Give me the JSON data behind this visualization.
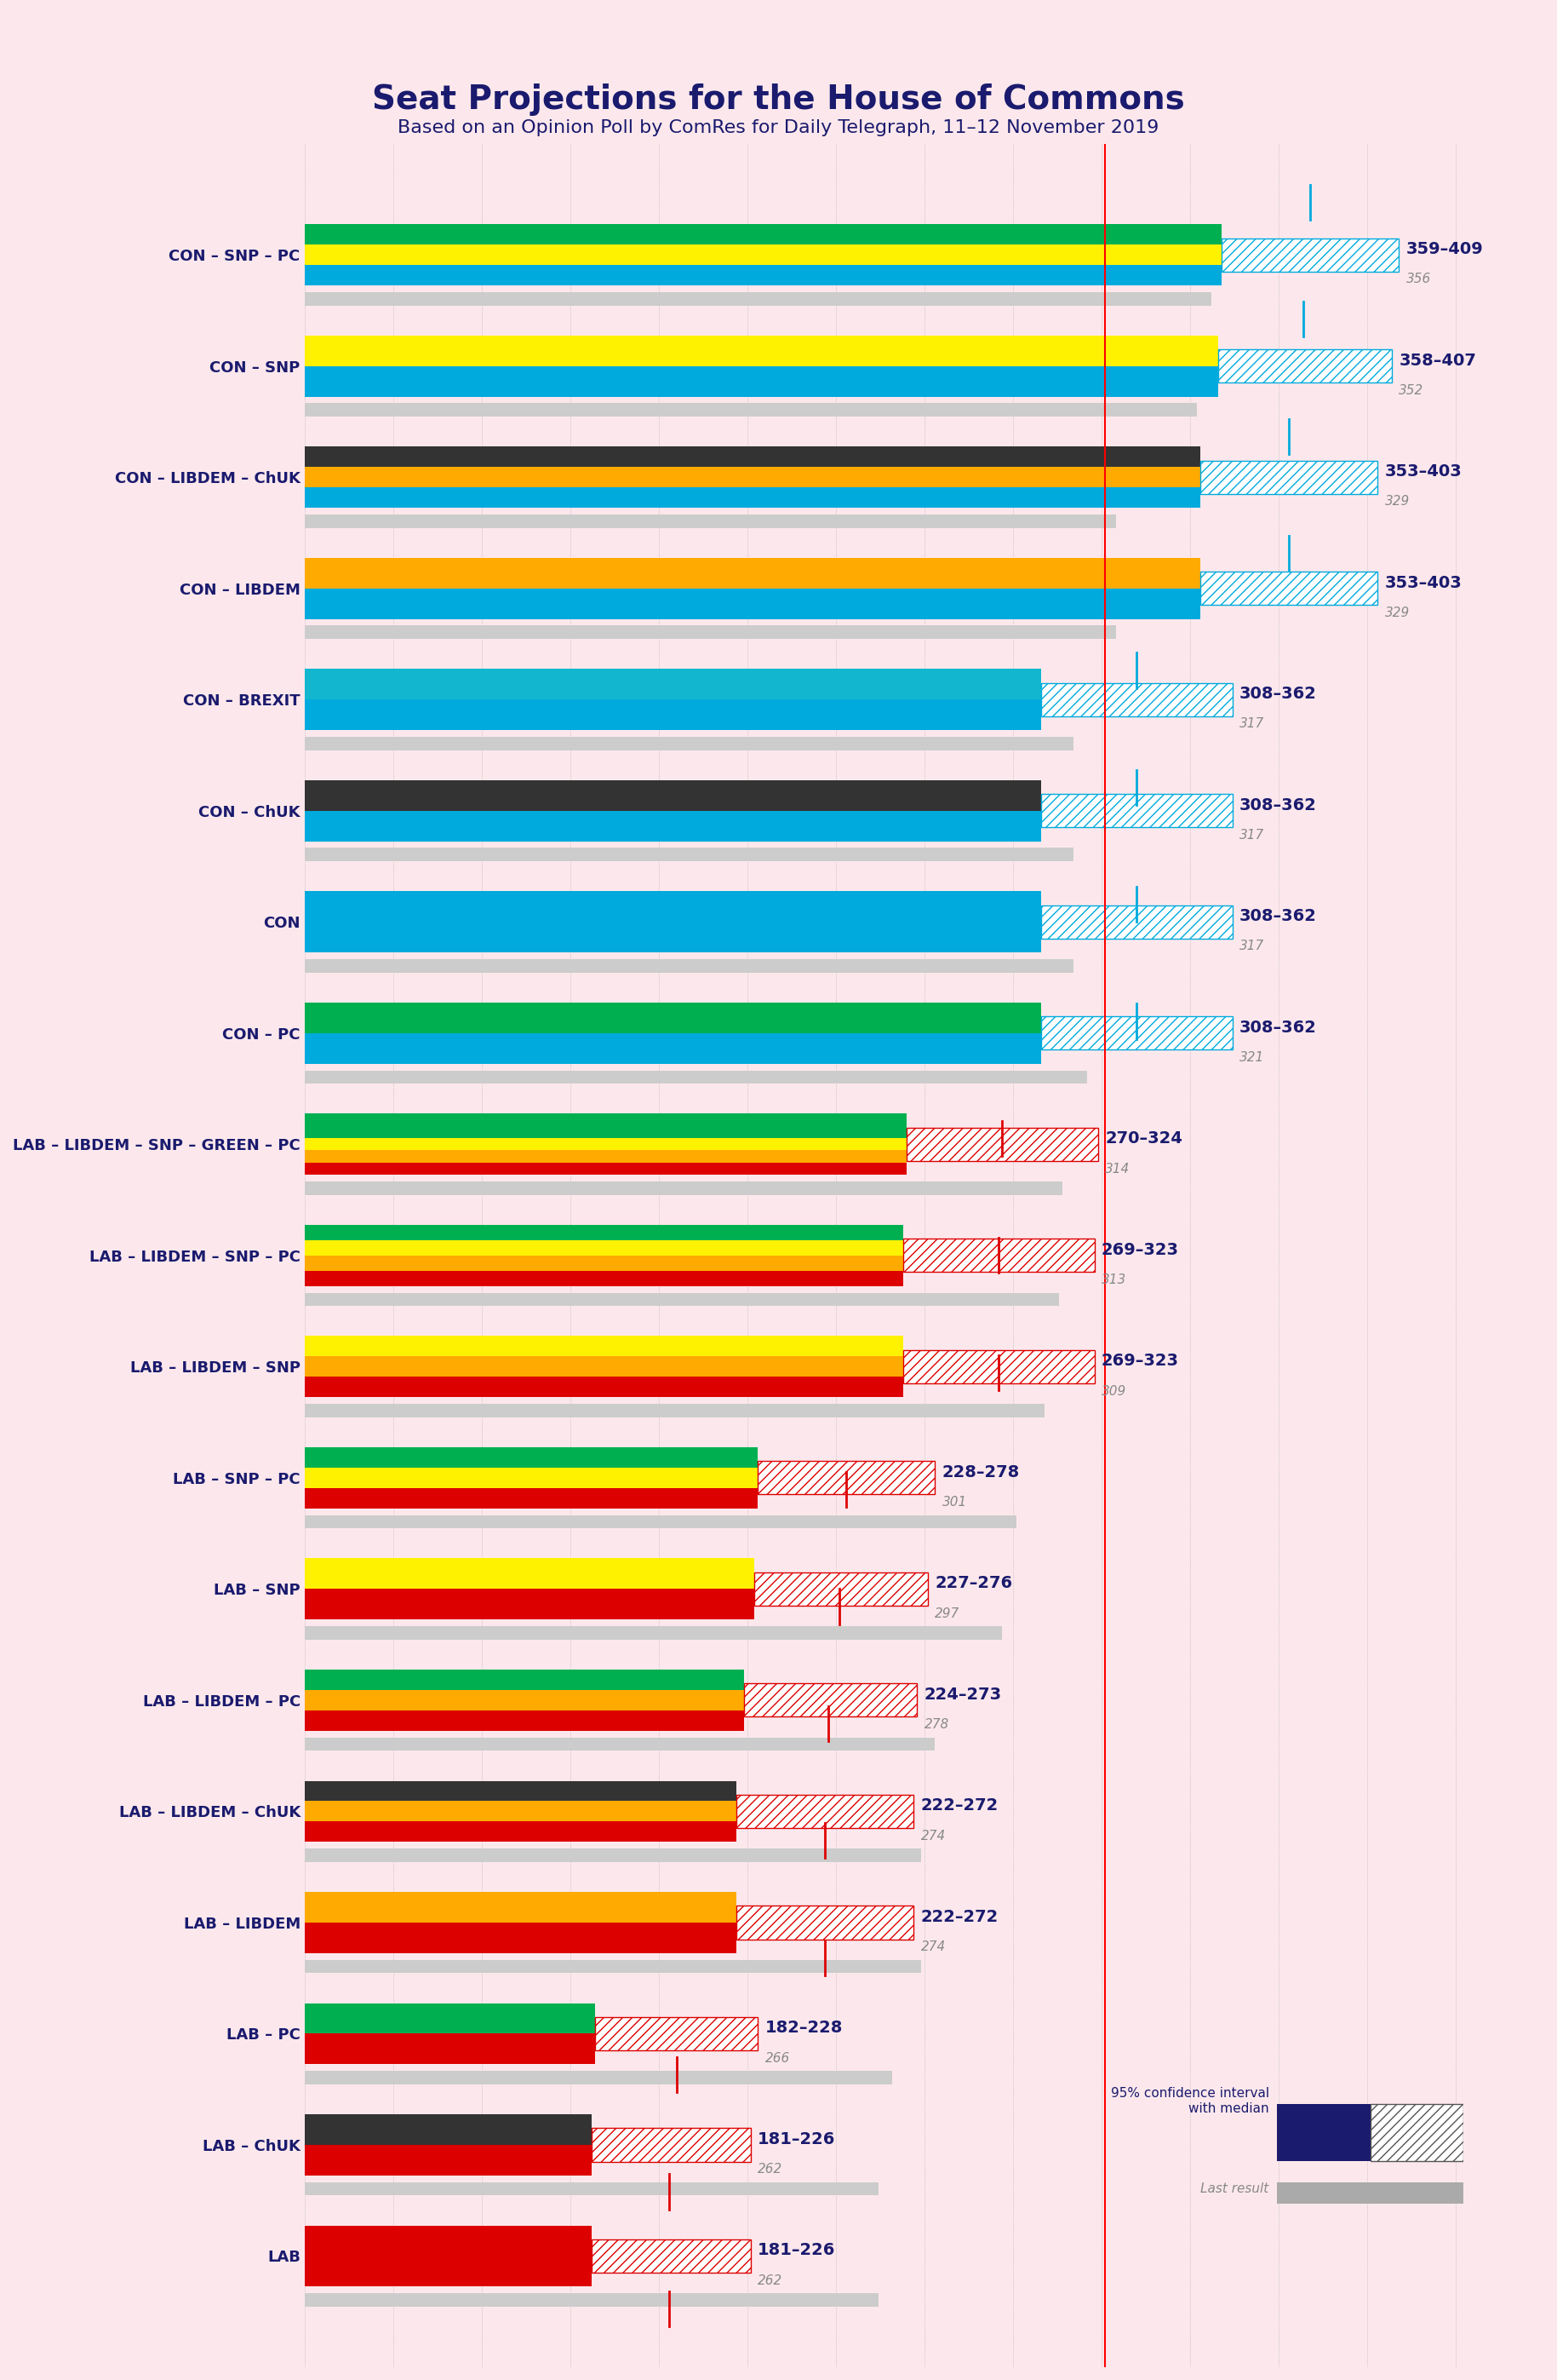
{
  "title": "Seat Projections for the House of Commons",
  "subtitle": "Based on an Opinion Poll by ComRes for Daily Telegraph, 11–12 November 2019",
  "background_color": "#fce8ec",
  "title_color": "#1a1a6e",
  "subtitle_color": "#1a1a6e",
  "majority_line": 326,
  "x_min": 100,
  "x_max": 450,
  "legend_label_ci": "95% confidence interval\nwith median",
  "legend_label_last": "Last result",
  "coalitions": [
    {
      "name": "CON – SNP – PC",
      "range_low": 359,
      "range_high": 409,
      "median": 384,
      "last_result": 356,
      "colors": [
        "#00aadd",
        "#fef200",
        "#00b050"
      ],
      "ci_color": "#00aadd"
    },
    {
      "name": "CON – SNP",
      "range_low": 358,
      "range_high": 407,
      "median": 382,
      "last_result": 352,
      "colors": [
        "#00aadd",
        "#fef200"
      ],
      "ci_color": "#00aadd"
    },
    {
      "name": "CON – LIBDEM – ChUK",
      "range_low": 353,
      "range_high": 403,
      "median": 378,
      "last_result": 329,
      "colors": [
        "#00aadd",
        "#ffaa00",
        "#333333"
      ],
      "ci_color": "#00aadd"
    },
    {
      "name": "CON – LIBDEM",
      "range_low": 353,
      "range_high": 403,
      "median": 378,
      "last_result": 329,
      "colors": [
        "#00aadd",
        "#ffaa00"
      ],
      "ci_color": "#00aadd"
    },
    {
      "name": "CON – BREXIT",
      "range_low": 308,
      "range_high": 362,
      "median": 335,
      "last_result": 317,
      "colors": [
        "#00aadd",
        "#12b6cf"
      ],
      "ci_color": "#00aadd"
    },
    {
      "name": "CON – ChUK",
      "range_low": 308,
      "range_high": 362,
      "median": 335,
      "last_result": 317,
      "colors": [
        "#00aadd",
        "#333333"
      ],
      "ci_color": "#00aadd"
    },
    {
      "name": "CON",
      "range_low": 308,
      "range_high": 362,
      "median": 335,
      "last_result": 317,
      "colors": [
        "#00aadd"
      ],
      "ci_color": "#00aadd"
    },
    {
      "name": "CON – PC",
      "range_low": 308,
      "range_high": 362,
      "median": 335,
      "last_result": 321,
      "colors": [
        "#00aadd",
        "#00b050"
      ],
      "ci_color": "#00aadd"
    },
    {
      "name": "LAB – LIBDEM – SNP – GREEN – PC",
      "range_low": 270,
      "range_high": 324,
      "median": 297,
      "last_result": 314,
      "colors": [
        "#dd0000",
        "#ffaa00",
        "#fef200",
        "#00b050",
        "#00b050"
      ],
      "ci_color": "#dd0000"
    },
    {
      "name": "LAB – LIBDEM – SNP – PC",
      "range_low": 269,
      "range_high": 323,
      "median": 296,
      "last_result": 313,
      "colors": [
        "#dd0000",
        "#ffaa00",
        "#fef200",
        "#00b050"
      ],
      "ci_color": "#dd0000"
    },
    {
      "name": "LAB – LIBDEM – SNP",
      "range_low": 269,
      "range_high": 323,
      "median": 296,
      "last_result": 309,
      "colors": [
        "#dd0000",
        "#ffaa00",
        "#fef200"
      ],
      "ci_color": "#dd0000"
    },
    {
      "name": "LAB – SNP – PC",
      "range_low": 228,
      "range_high": 278,
      "median": 253,
      "last_result": 301,
      "colors": [
        "#dd0000",
        "#fef200",
        "#00b050"
      ],
      "ci_color": "#dd0000"
    },
    {
      "name": "LAB – SNP",
      "range_low": 227,
      "range_high": 276,
      "median": 251,
      "last_result": 297,
      "colors": [
        "#dd0000",
        "#fef200"
      ],
      "ci_color": "#dd0000"
    },
    {
      "name": "LAB – LIBDEM – PC",
      "range_low": 224,
      "range_high": 273,
      "median": 248,
      "last_result": 278,
      "colors": [
        "#dd0000",
        "#ffaa00",
        "#00b050"
      ],
      "ci_color": "#dd0000"
    },
    {
      "name": "LAB – LIBDEM – ChUK",
      "range_low": 222,
      "range_high": 272,
      "median": 247,
      "last_result": 274,
      "colors": [
        "#dd0000",
        "#ffaa00",
        "#333333"
      ],
      "ci_color": "#dd0000"
    },
    {
      "name": "LAB – LIBDEM",
      "range_low": 222,
      "range_high": 272,
      "median": 247,
      "last_result": 274,
      "colors": [
        "#dd0000",
        "#ffaa00"
      ],
      "ci_color": "#dd0000"
    },
    {
      "name": "LAB – PC",
      "range_low": 182,
      "range_high": 228,
      "median": 205,
      "last_result": 266,
      "colors": [
        "#dd0000",
        "#00b050"
      ],
      "ci_color": "#dd0000"
    },
    {
      "name": "LAB – ChUK",
      "range_low": 181,
      "range_high": 226,
      "median": 203,
      "last_result": 262,
      "colors": [
        "#dd0000",
        "#333333"
      ],
      "ci_color": "#dd0000"
    },
    {
      "name": "LAB",
      "range_low": 181,
      "range_high": 226,
      "median": 203,
      "last_result": 262,
      "colors": [
        "#dd0000"
      ],
      "ci_color": "#dd0000"
    }
  ]
}
